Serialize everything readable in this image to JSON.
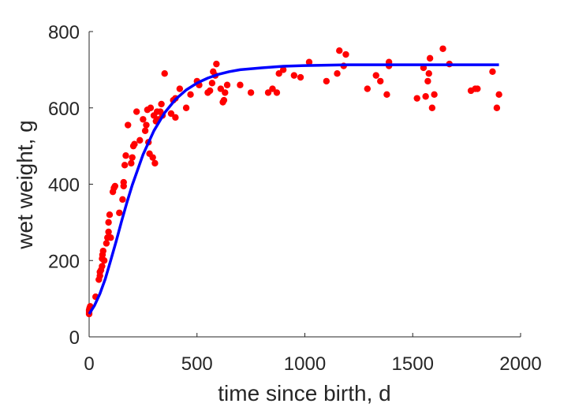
{
  "chart_data": {
    "type": "scatter",
    "xlabel": "time since birth, d",
    "ylabel": "wet weight, g",
    "xlim": [
      0,
      2000
    ],
    "ylim": [
      0,
      800
    ],
    "xticks": [
      "0",
      "500",
      "1000",
      "1500",
      "2000"
    ],
    "yticks": [
      "0",
      "200",
      "400",
      "600",
      "800"
    ],
    "grid": false,
    "colors": {
      "points": "#ff0000",
      "curve": "#0000ff",
      "axis": "#262626"
    },
    "points": [
      [
        0,
        60
      ],
      [
        0,
        65
      ],
      [
        0,
        70
      ],
      [
        2,
        75
      ],
      [
        5,
        80
      ],
      [
        30,
        105
      ],
      [
        45,
        150
      ],
      [
        50,
        160
      ],
      [
        50,
        170
      ],
      [
        55,
        175
      ],
      [
        60,
        185
      ],
      [
        60,
        205
      ],
      [
        62,
        215
      ],
      [
        65,
        225
      ],
      [
        70,
        200
      ],
      [
        80,
        245
      ],
      [
        85,
        260
      ],
      [
        90,
        275
      ],
      [
        90,
        300
      ],
      [
        95,
        320
      ],
      [
        100,
        260
      ],
      [
        110,
        380
      ],
      [
        115,
        390
      ],
      [
        120,
        395
      ],
      [
        140,
        325
      ],
      [
        155,
        360
      ],
      [
        160,
        395
      ],
      [
        160,
        405
      ],
      [
        165,
        450
      ],
      [
        170,
        475
      ],
      [
        180,
        555
      ],
      [
        195,
        455
      ],
      [
        200,
        470
      ],
      [
        205,
        500
      ],
      [
        210,
        505
      ],
      [
        220,
        590
      ],
      [
        235,
        515
      ],
      [
        250,
        570
      ],
      [
        260,
        540
      ],
      [
        265,
        555
      ],
      [
        270,
        595
      ],
      [
        275,
        510
      ],
      [
        280,
        480
      ],
      [
        285,
        600
      ],
      [
        295,
        470
      ],
      [
        300,
        580
      ],
      [
        305,
        455
      ],
      [
        310,
        565
      ],
      [
        315,
        590
      ],
      [
        320,
        570
      ],
      [
        330,
        590
      ],
      [
        335,
        610
      ],
      [
        340,
        580
      ],
      [
        350,
        690
      ],
      [
        380,
        585
      ],
      [
        390,
        620
      ],
      [
        400,
        625
      ],
      [
        400,
        575
      ],
      [
        420,
        650
      ],
      [
        450,
        600
      ],
      [
        470,
        635
      ],
      [
        500,
        670
      ],
      [
        510,
        660
      ],
      [
        550,
        640
      ],
      [
        560,
        645
      ],
      [
        570,
        665
      ],
      [
        575,
        695
      ],
      [
        585,
        685
      ],
      [
        590,
        715
      ],
      [
        610,
        650
      ],
      [
        620,
        615
      ],
      [
        625,
        620
      ],
      [
        630,
        640
      ],
      [
        640,
        660
      ],
      [
        700,
        660
      ],
      [
        750,
        640
      ],
      [
        830,
        640
      ],
      [
        850,
        650
      ],
      [
        870,
        640
      ],
      [
        880,
        690
      ],
      [
        900,
        700
      ],
      [
        950,
        685
      ],
      [
        980,
        680
      ],
      [
        1020,
        720
      ],
      [
        1100,
        670
      ],
      [
        1150,
        690
      ],
      [
        1160,
        750
      ],
      [
        1180,
        710
      ],
      [
        1190,
        740
      ],
      [
        1290,
        650
      ],
      [
        1330,
        685
      ],
      [
        1350,
        670
      ],
      [
        1380,
        635
      ],
      [
        1390,
        710
      ],
      [
        1390,
        720
      ],
      [
        1520,
        625
      ],
      [
        1550,
        705
      ],
      [
        1560,
        630
      ],
      [
        1570,
        670
      ],
      [
        1575,
        690
      ],
      [
        1580,
        730
      ],
      [
        1590,
        600
      ],
      [
        1600,
        635
      ],
      [
        1640,
        755
      ],
      [
        1670,
        715
      ],
      [
        1770,
        645
      ],
      [
        1790,
        650
      ],
      [
        1800,
        650
      ],
      [
        1870,
        695
      ],
      [
        1890,
        600
      ],
      [
        1900,
        635
      ]
    ],
    "fit_curve": [
      [
        0,
        60
      ],
      [
        25,
        82
      ],
      [
        50,
        113
      ],
      [
        75,
        152
      ],
      [
        100,
        200
      ],
      [
        125,
        250
      ],
      [
        150,
        302
      ],
      [
        175,
        352
      ],
      [
        200,
        398
      ],
      [
        250,
        478
      ],
      [
        300,
        540
      ],
      [
        350,
        587
      ],
      [
        400,
        622
      ],
      [
        450,
        647
      ],
      [
        500,
        665
      ],
      [
        550,
        678
      ],
      [
        600,
        688
      ],
      [
        650,
        695
      ],
      [
        700,
        700
      ],
      [
        800,
        705
      ],
      [
        900,
        709
      ],
      [
        1000,
        711
      ],
      [
        1100,
        712
      ],
      [
        1200,
        713
      ],
      [
        1400,
        713
      ],
      [
        1600,
        713
      ],
      [
        1800,
        713
      ],
      [
        1900,
        713
      ]
    ]
  }
}
